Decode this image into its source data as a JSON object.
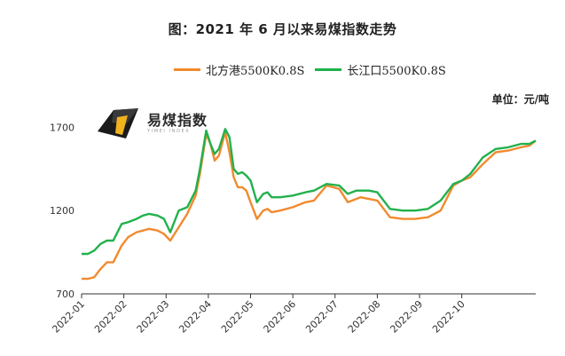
{
  "title": "图：2021 年 6 月以来易煤指数走势",
  "unit_label": "单位：元/吨",
  "logo": {
    "name": "易煤指数",
    "sub": "YIMEI INDEX"
  },
  "colors": {
    "north": "#F28A2E",
    "yangtze": "#22B14C",
    "axis": "#333333"
  },
  "chart_data": {
    "type": "line",
    "title": "图：2021 年 6 月以来易煤指数走势",
    "xlabel": "",
    "ylabel": "",
    "ylim": [
      700,
      1750
    ],
    "yticks": [
      700,
      1200,
      1700
    ],
    "xticks": [
      "2022-01",
      "2022-02",
      "2022-03",
      "2022-04",
      "2022-05",
      "2022-06",
      "2022-07",
      "2022-08",
      "2022-09",
      "2022-10"
    ],
    "x": [
      0,
      0.15,
      0.3,
      0.45,
      0.6,
      0.75,
      0.95,
      1.1,
      1.3,
      1.45,
      1.6,
      1.8,
      1.95,
      2.1,
      2.3,
      2.5,
      2.7,
      2.8,
      2.95,
      3.05,
      3.15,
      3.25,
      3.4,
      3.5,
      3.6,
      3.7,
      3.8,
      3.9,
      4.0,
      4.15,
      4.3,
      4.4,
      4.5,
      4.7,
      5.0,
      5.3,
      5.5,
      5.8,
      6.1,
      6.3,
      6.5,
      6.6,
      6.8,
      7.0,
      7.3,
      7.6,
      7.9,
      8.2,
      8.5,
      8.8,
      9.0,
      9.2,
      9.5,
      9.8,
      10.1,
      10.4,
      10.6,
      10.75
    ],
    "series": [
      {
        "name": "北方港5500K0.8S",
        "values": [
          790,
          790,
          800,
          850,
          890,
          890,
          990,
          1040,
          1070,
          1080,
          1090,
          1080,
          1060,
          1020,
          1100,
          1180,
          1290,
          1420,
          1660,
          1600,
          1500,
          1530,
          1670,
          1550,
          1400,
          1340,
          1340,
          1320,
          1250,
          1150,
          1200,
          1210,
          1190,
          1200,
          1220,
          1250,
          1260,
          1350,
          1330,
          1250,
          1270,
          1280,
          1270,
          1260,
          1160,
          1150,
          1150,
          1160,
          1200,
          1350,
          1380,
          1400,
          1480,
          1550,
          1560,
          1580,
          1590,
          1620
        ]
      },
      {
        "name": "长江口5500K0.8S",
        "values": [
          940,
          940,
          960,
          1000,
          1020,
          1020,
          1120,
          1130,
          1150,
          1170,
          1180,
          1170,
          1150,
          1070,
          1200,
          1220,
          1320,
          1450,
          1680,
          1600,
          1540,
          1570,
          1690,
          1640,
          1450,
          1420,
          1430,
          1410,
          1380,
          1250,
          1300,
          1310,
          1280,
          1280,
          1290,
          1310,
          1320,
          1360,
          1350,
          1300,
          1320,
          1320,
          1320,
          1310,
          1210,
          1200,
          1200,
          1210,
          1260,
          1360,
          1380,
          1420,
          1520,
          1570,
          1580,
          1600,
          1600,
          1620
        ]
      }
    ]
  }
}
